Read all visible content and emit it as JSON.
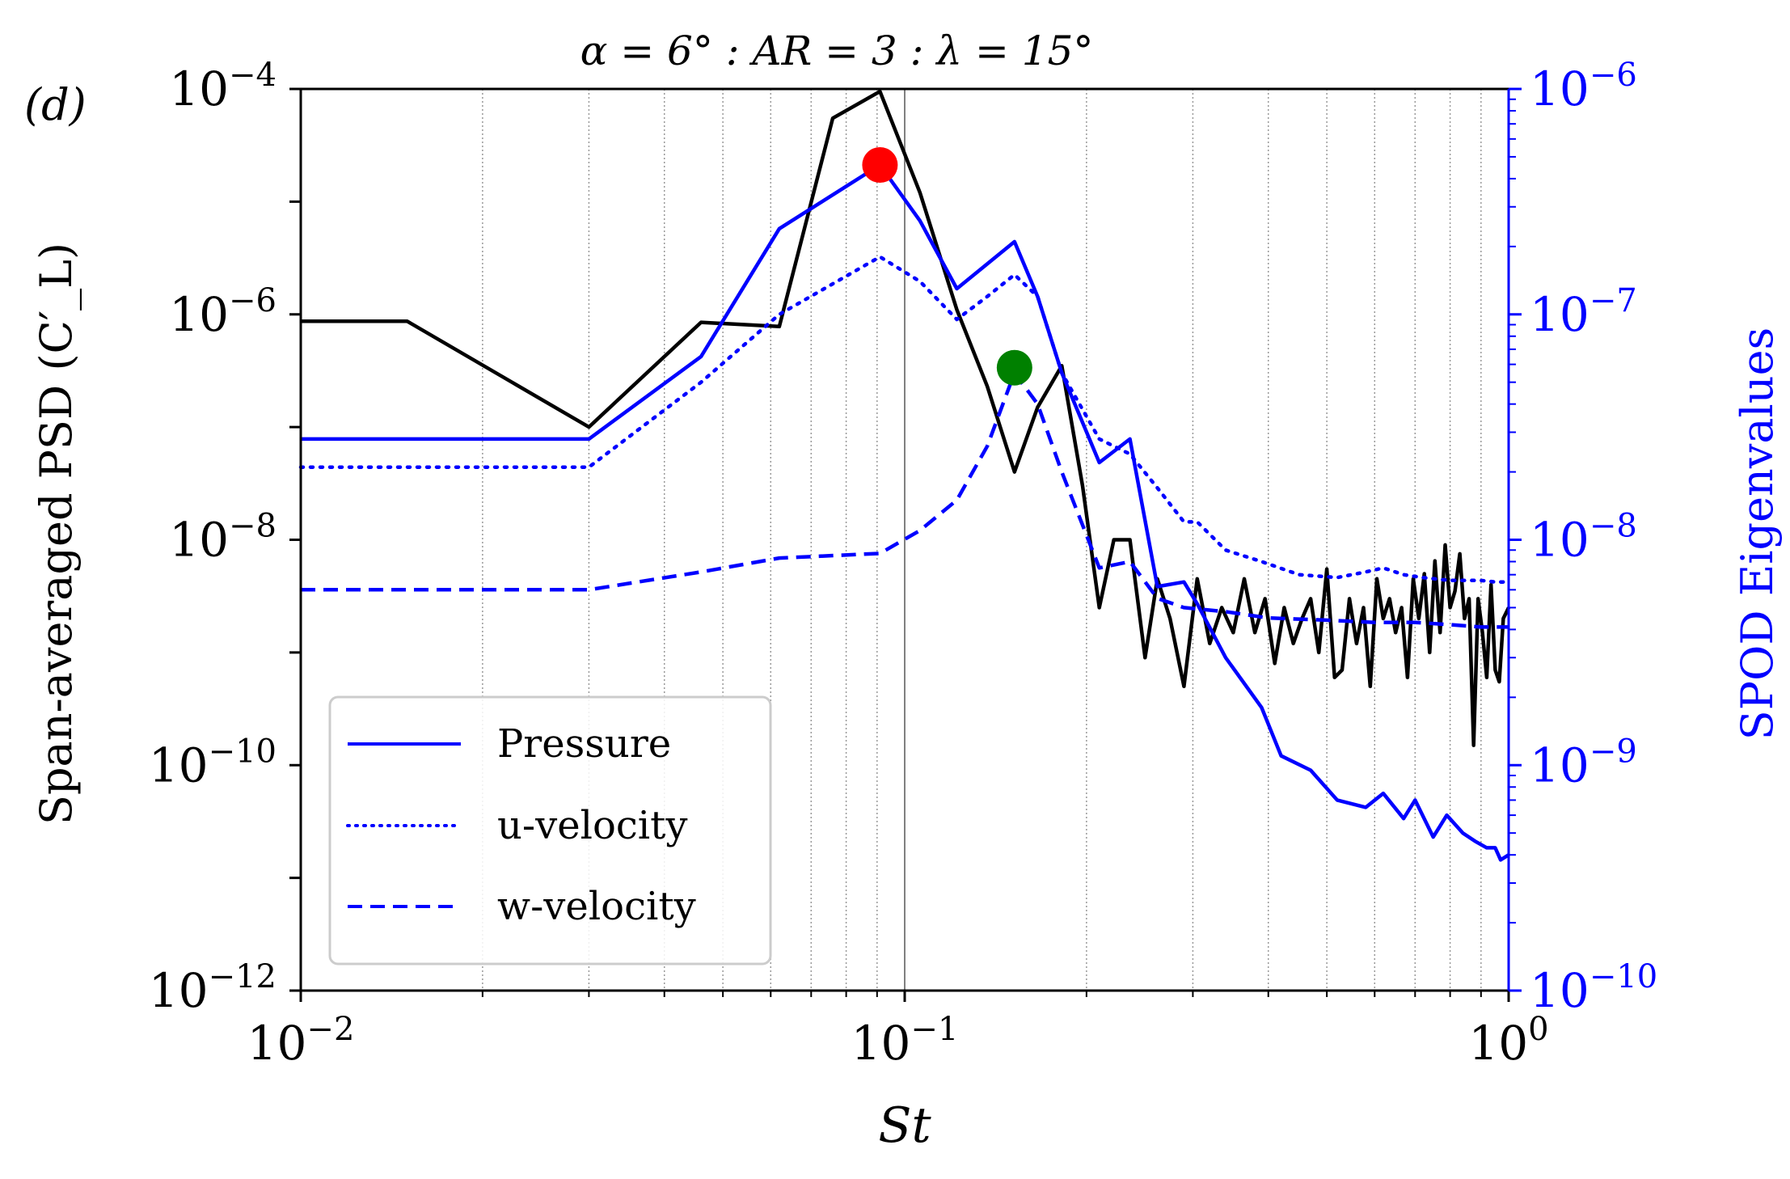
{
  "chart_data": {
    "type": "line",
    "panel_label": "(d)",
    "title": "α = 6° : AR = 3 : λ = 15°",
    "xlabel": "St",
    "ylabel": "Span-averaged PSD (C′_L)",
    "ylabel_right": "SPOD Eigenvalues",
    "xscale": "log",
    "xlim": [
      0.01,
      1
    ],
    "ylim_left": [
      1e-12,
      0.0001
    ],
    "ylim_right": [
      1e-10,
      1e-06
    ],
    "grid": "vertical minor dotted, major solid at 0.1",
    "legend_position": "lower-left",
    "colors": {
      "psd": "#000000",
      "spod": "#0000ff",
      "peak_primary": "#ff0000",
      "peak_secondary": "#008000"
    },
    "x_tick_labels": [
      {
        "value": 0.01,
        "base": "10",
        "exp": "−2"
      },
      {
        "value": 0.1,
        "base": "10",
        "exp": "−1"
      },
      {
        "value": 1,
        "base": "10",
        "exp": "0"
      }
    ],
    "left_tick_labels": [
      {
        "value": 0.0001,
        "base": "10",
        "exp": "−4"
      },
      {
        "value": 1e-06,
        "base": "10",
        "exp": "−6"
      },
      {
        "value": 1e-08,
        "base": "10",
        "exp": "−8"
      },
      {
        "value": 1e-10,
        "base": "10",
        "exp": "−10"
      },
      {
        "value": 1e-12,
        "base": "10",
        "exp": "−12"
      }
    ],
    "right_tick_labels": [
      {
        "value": 1e-06,
        "base": "10",
        "exp": "−6"
      },
      {
        "value": 1e-07,
        "base": "10",
        "exp": "−7"
      },
      {
        "value": 1e-08,
        "base": "10",
        "exp": "−8"
      },
      {
        "value": 1e-09,
        "base": "10",
        "exp": "−9"
      },
      {
        "value": 1e-10,
        "base": "10",
        "exp": "−10"
      }
    ],
    "series": [
      {
        "name": "Span-averaged PSD",
        "axis": "left",
        "style": "solid",
        "color": "#000000",
        "in_legend": false,
        "x": [
          0.01,
          0.015,
          0.03,
          0.046,
          0.062,
          0.076,
          0.091,
          0.106,
          0.122,
          0.137,
          0.152,
          0.166,
          0.182,
          0.197,
          0.21,
          0.222,
          0.236,
          0.25,
          0.262,
          0.275,
          0.29,
          0.305,
          0.32,
          0.335,
          0.35,
          0.365,
          0.38,
          0.395,
          0.41,
          0.425,
          0.44,
          0.455,
          0.47,
          0.485,
          0.5,
          0.515,
          0.53,
          0.545,
          0.56,
          0.575,
          0.59,
          0.605,
          0.62,
          0.635,
          0.65,
          0.665,
          0.68,
          0.695,
          0.71,
          0.725,
          0.74,
          0.755,
          0.77,
          0.785,
          0.8,
          0.815,
          0.83,
          0.845,
          0.86,
          0.875,
          0.89,
          0.905,
          0.92,
          0.935,
          0.95,
          0.965,
          0.98,
          1.0
        ],
        "y": [
          8.7e-07,
          8.7e-07,
          1e-07,
          8.5e-07,
          7.8e-07,
          5.5e-05,
          9.5e-05,
          1.2e-05,
          1.1e-06,
          2.3e-07,
          4e-08,
          1.5e-07,
          3.5e-07,
          3e-08,
          2.5e-09,
          1e-08,
          1e-08,
          9e-10,
          4.5e-09,
          2e-09,
          5e-10,
          4.5e-09,
          1.2e-09,
          2.5e-09,
          1.5e-09,
          4.5e-09,
          1.5e-09,
          3e-09,
          8e-10,
          2.5e-09,
          1.2e-09,
          2e-09,
          3e-09,
          1e-09,
          5.5e-09,
          6e-10,
          7e-10,
          3e-09,
          1.2e-09,
          2.5e-09,
          5e-10,
          4.5e-09,
          2e-09,
          3e-09,
          1.5e-09,
          2.5e-09,
          6e-10,
          4.5e-09,
          2e-09,
          5e-09,
          1e-09,
          6.5e-09,
          1.5e-09,
          9e-09,
          2.5e-09,
          3.5e-09,
          7.5e-09,
          2e-09,
          3e-09,
          1.5e-10,
          3e-09,
          1.5e-09,
          6e-10,
          4e-09,
          7e-10,
          5.5e-10,
          2e-09,
          2.5e-09
        ]
      },
      {
        "name": "Pressure",
        "axis": "right",
        "style": "solid",
        "color": "#0000ff",
        "in_legend": true,
        "x": [
          0.01,
          0.03,
          0.046,
          0.062,
          0.091,
          0.106,
          0.122,
          0.152,
          0.166,
          0.182,
          0.21,
          0.236,
          0.262,
          0.29,
          0.305,
          0.34,
          0.39,
          0.42,
          0.47,
          0.52,
          0.58,
          0.62,
          0.67,
          0.7,
          0.75,
          0.79,
          0.84,
          0.88,
          0.92,
          0.95,
          0.97,
          1.0
        ],
        "y": [
          2.8e-08,
          2.8e-08,
          6.5e-08,
          2.4e-07,
          4.6e-07,
          2.6e-07,
          1.3e-07,
          2.1e-07,
          1.2e-07,
          5.5e-08,
          2.2e-08,
          2.8e-08,
          6.2e-09,
          6.5e-09,
          5.2e-09,
          3e-09,
          1.8e-09,
          1.1e-09,
          9.5e-10,
          7e-10,
          6.5e-10,
          7.5e-10,
          5.8e-10,
          7e-10,
          4.8e-10,
          6e-10,
          5e-10,
          4.6e-10,
          4.3e-10,
          4.3e-10,
          3.8e-10,
          4e-10
        ]
      },
      {
        "name": "u-velocity",
        "axis": "right",
        "style": "dotted",
        "color": "#0000ff",
        "in_legend": true,
        "x": [
          0.01,
          0.03,
          0.046,
          0.062,
          0.091,
          0.106,
          0.122,
          0.137,
          0.152,
          0.166,
          0.182,
          0.21,
          0.236,
          0.262,
          0.29,
          0.305,
          0.34,
          0.39,
          0.45,
          0.52,
          0.58,
          0.62,
          0.67,
          0.72,
          0.8,
          0.9,
          0.95,
          1.0
        ],
        "y": [
          2.1e-08,
          2.1e-08,
          5e-08,
          1e-07,
          1.8e-07,
          1.4e-07,
          9.5e-08,
          1.2e-07,
          1.5e-07,
          1.2e-07,
          5.5e-08,
          2.8e-08,
          2.4e-08,
          1.7e-08,
          1.2e-08,
          1.2e-08,
          9e-09,
          8e-09,
          7e-09,
          6.8e-09,
          7.2e-09,
          7.5e-09,
          7e-09,
          6.8e-09,
          6.6e-09,
          6.6e-09,
          6.5e-09,
          6.5e-09
        ]
      },
      {
        "name": "w-velocity",
        "axis": "right",
        "style": "dashed",
        "color": "#0000ff",
        "in_legend": true,
        "x": [
          0.01,
          0.03,
          0.046,
          0.062,
          0.091,
          0.106,
          0.122,
          0.137,
          0.152,
          0.166,
          0.182,
          0.21,
          0.236,
          0.262,
          0.29,
          0.34,
          0.4,
          0.5,
          0.6,
          0.7,
          0.8,
          0.9,
          1.0
        ],
        "y": [
          6e-09,
          6e-09,
          7.2e-09,
          8.3e-09,
          8.7e-09,
          1.1e-08,
          1.5e-08,
          2.6e-08,
          5.5e-08,
          4e-08,
          2e-08,
          7.5e-09,
          8e-09,
          5.5e-09,
          5e-09,
          4.8e-09,
          4.5e-09,
          4.4e-09,
          4.3e-09,
          4.3e-09,
          4.2e-09,
          4.1e-09,
          4.1e-09
        ]
      }
    ],
    "markers": [
      {
        "name": "primary peak",
        "axis": "right",
        "x": 0.091,
        "y": 4.6e-07,
        "color": "#ff0000"
      },
      {
        "name": "secondary peak",
        "axis": "right",
        "x": 0.152,
        "y": 5.8e-08,
        "color": "#008000"
      }
    ]
  }
}
